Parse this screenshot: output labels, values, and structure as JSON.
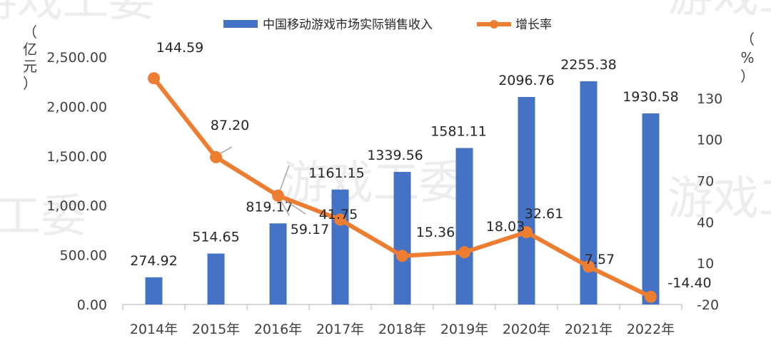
{
  "chart_data": {
    "type": "bar",
    "categories": [
      "2014年",
      "2015年",
      "2016年",
      "2017年",
      "2018年",
      "2019年",
      "2020年",
      "2021年",
      "2022年"
    ],
    "series": [
      {
        "name": "中国移动游戏市场实际销售收入",
        "type": "bar",
        "axis": "left",
        "color": "#4472C4",
        "values": [
          274.92,
          514.65,
          819.17,
          1161.15,
          1339.56,
          1581.11,
          2096.76,
          2255.38,
          1930.58
        ],
        "labels": [
          "274.92",
          "514.65",
          "819.17",
          "1161.15",
          "1339.56",
          "1581.11",
          "2096.76",
          "2255.38",
          "1930.58"
        ]
      },
      {
        "name": "增长率",
        "type": "line",
        "axis": "right",
        "color": "#ED7D31",
        "values": [
          144.59,
          87.2,
          59.17,
          41.75,
          15.36,
          18.03,
          32.61,
          7.57,
          -14.4
        ],
        "labels": [
          "144.59",
          "87.20",
          "59.17",
          "41.75",
          "15.36",
          "18.03",
          "32.61",
          "7.57",
          "-14.40"
        ]
      }
    ],
    "y_left": {
      "unit_chars": [
        "（",
        "亿",
        "元",
        "）"
      ],
      "min": 0,
      "max": 2500,
      "ticks": [
        0,
        500,
        1000,
        1500,
        2000,
        2500
      ],
      "tick_labels": [
        "0.00",
        "500.00",
        "1,000.00",
        "1,500.00",
        "2,000.00",
        "2,500.00"
      ]
    },
    "y_right": {
      "unit_chars": [
        "（",
        "%",
        "）"
      ],
      "min": -20,
      "max": 160,
      "ticks": [
        -20,
        10,
        40,
        70,
        100,
        130
      ],
      "tick_labels": [
        "-20",
        "10",
        "40",
        "70",
        "100",
        "130"
      ]
    },
    "legend_position": "top",
    "grid": false,
    "watermark": "游戏工委"
  }
}
